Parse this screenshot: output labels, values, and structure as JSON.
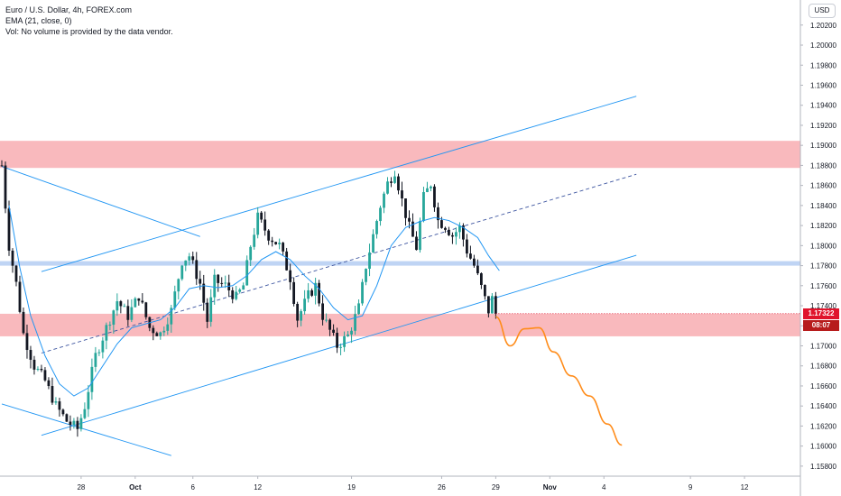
{
  "legend": {
    "symbol": "Euro / U.S. Dollar, 4h, FOREX.com",
    "ema": "EMA (21, close, 0)",
    "volume": "Vol: No volume is provided by the data vendor."
  },
  "currency_button": "USD",
  "price_tags": {
    "last_price": "1.17322",
    "countdown": "08:07",
    "color": "#e0142c"
  },
  "colors": {
    "up": "#26a69a",
    "down": "#131722",
    "ema": "#2196f3",
    "channel": "#2196f3",
    "projection": "#ff8c1a",
    "supply_zone": "#f7a8ad",
    "pivot_zone": "#b4ccf2"
  },
  "chart_data": {
    "type": "candlestick",
    "title": "",
    "symbol": "EURUSD",
    "timeframe": "4h",
    "ylim": [
      1.157,
      1.2045
    ],
    "y_ticks": [
      "1.15800",
      "1.16000",
      "1.16200",
      "1.16400",
      "1.16600",
      "1.16800",
      "1.17000",
      "1.17200",
      "1.17400",
      "1.17600",
      "1.17800",
      "1.18000",
      "1.18200",
      "1.18400",
      "1.18600",
      "1.18800",
      "1.19000",
      "1.19200",
      "1.19400",
      "1.19600",
      "1.19800",
      "1.20000",
      "1.20200"
    ],
    "x_ticks": [
      {
        "label": "28",
        "bar": 22
      },
      {
        "label": "Oct",
        "bar": 37
      },
      {
        "label": "6",
        "bar": 53
      },
      {
        "label": "12",
        "bar": 71
      },
      {
        "label": "19",
        "bar": 97
      },
      {
        "label": "26",
        "bar": 122
      },
      {
        "label": "29",
        "bar": 137
      },
      {
        "label": "Nov",
        "bar": 152
      },
      {
        "label": "4",
        "bar": 167
      },
      {
        "label": "9",
        "bar": 191
      },
      {
        "label": "12",
        "bar": 206
      }
    ],
    "bar_count_total": 222,
    "waypoints": [
      [
        0,
        1.188
      ],
      [
        2,
        1.18
      ],
      [
        4,
        1.1762
      ],
      [
        6,
        1.1712
      ],
      [
        9,
        1.168
      ],
      [
        12,
        1.1665
      ],
      [
        15,
        1.164
      ],
      [
        18,
        1.1625
      ],
      [
        21,
        1.1617
      ],
      [
        23,
        1.164
      ],
      [
        26,
        1.169
      ],
      [
        29,
        1.1718
      ],
      [
        32,
        1.1745
      ],
      [
        35,
        1.173
      ],
      [
        38,
        1.175
      ],
      [
        41,
        1.1718
      ],
      [
        44,
        1.1712
      ],
      [
        47,
        1.1735
      ],
      [
        50,
        1.1785
      ],
      [
        52,
        1.179
      ],
      [
        55,
        1.1762
      ],
      [
        57,
        1.1725
      ],
      [
        59,
        1.1765
      ],
      [
        62,
        1.176
      ],
      [
        65,
        1.1748
      ],
      [
        67,
        1.176
      ],
      [
        69,
        1.18
      ],
      [
        71,
        1.1828
      ],
      [
        74,
        1.181
      ],
      [
        77,
        1.18
      ],
      [
        80,
        1.1768
      ],
      [
        82,
        1.1727
      ],
      [
        85,
        1.175
      ],
      [
        87,
        1.176
      ],
      [
        89,
        1.173
      ],
      [
        91,
        1.1715
      ],
      [
        93,
        1.17
      ],
      [
        96,
        1.171
      ],
      [
        99,
        1.1738
      ],
      [
        101,
        1.178
      ],
      [
        103,
        1.181
      ],
      [
        105,
        1.184
      ],
      [
        107,
        1.1862
      ],
      [
        109,
        1.1875
      ],
      [
        111,
        1.1845
      ],
      [
        113,
        1.1818
      ],
      [
        115,
        1.1798
      ],
      [
        117,
        1.1848
      ],
      [
        119,
        1.1862
      ],
      [
        121,
        1.1825
      ],
      [
        123,
        1.182
      ],
      [
        125,
        1.181
      ],
      [
        127,
        1.1818
      ],
      [
        129,
        1.1795
      ],
      [
        131,
        1.178
      ],
      [
        133,
        1.1758
      ],
      [
        135,
        1.1735
      ],
      [
        136,
        1.1747
      ],
      [
        137,
        1.1732
      ]
    ],
    "ema21": [
      [
        2,
        1.184
      ],
      [
        5,
        1.1778
      ],
      [
        8,
        1.173
      ],
      [
        12,
        1.169
      ],
      [
        16,
        1.1662
      ],
      [
        20,
        1.165
      ],
      [
        24,
        1.1658
      ],
      [
        28,
        1.168
      ],
      [
        32,
        1.1702
      ],
      [
        36,
        1.1718
      ],
      [
        40,
        1.1722
      ],
      [
        44,
        1.1726
      ],
      [
        48,
        1.1738
      ],
      [
        52,
        1.1757
      ],
      [
        56,
        1.176
      ],
      [
        60,
        1.1758
      ],
      [
        64,
        1.176
      ],
      [
        68,
        1.177
      ],
      [
        72,
        1.1786
      ],
      [
        76,
        1.1794
      ],
      [
        80,
        1.1786
      ],
      [
        84,
        1.177
      ],
      [
        88,
        1.1757
      ],
      [
        92,
        1.1738
      ],
      [
        96,
        1.1726
      ],
      [
        100,
        1.173
      ],
      [
        104,
        1.176
      ],
      [
        108,
        1.18
      ],
      [
        112,
        1.1818
      ],
      [
        116,
        1.1824
      ],
      [
        120,
        1.1828
      ],
      [
        124,
        1.1825
      ],
      [
        128,
        1.1818
      ],
      [
        132,
        1.1808
      ],
      [
        135,
        1.179
      ],
      [
        138,
        1.1775
      ]
    ],
    "zones": [
      {
        "name": "supply",
        "low": 1.18775,
        "high": 1.19045
      },
      {
        "name": "pivot",
        "low": 1.178,
        "high": 1.17845
      },
      {
        "name": "demand",
        "low": 1.17095,
        "high": 1.1732
      }
    ],
    "lines": [
      {
        "name": "upper-channel",
        "from": [
          11,
          1.1774
        ],
        "to": [
          176,
          1.1949
        ],
        "dash": false
      },
      {
        "name": "mid-channel",
        "from": [
          11,
          1.16928
        ],
        "to": [
          176,
          1.18712
        ],
        "dash": true
      },
      {
        "name": "lower-channel",
        "from": [
          11,
          1.16108
        ],
        "to": [
          176,
          1.17904
        ],
        "dash": false
      },
      {
        "name": "falling-top",
        "from": [
          0,
          1.1879
        ],
        "to": [
          55,
          1.1809
        ],
        "dash": false
      },
      {
        "name": "falling-bottom",
        "from": [
          0,
          1.1642
        ],
        "to": [
          47,
          1.15905
        ],
        "dash": false
      }
    ],
    "projection": [
      [
        137,
        1.1729
      ],
      [
        141,
        1.17
      ],
      [
        145,
        1.1717
      ],
      [
        149,
        1.1718
      ],
      [
        153,
        1.1694
      ],
      [
        158,
        1.167
      ],
      [
        163,
        1.165
      ],
      [
        168,
        1.1622
      ],
      [
        172,
        1.1601
      ]
    ],
    "last_price": 1.17322
  }
}
